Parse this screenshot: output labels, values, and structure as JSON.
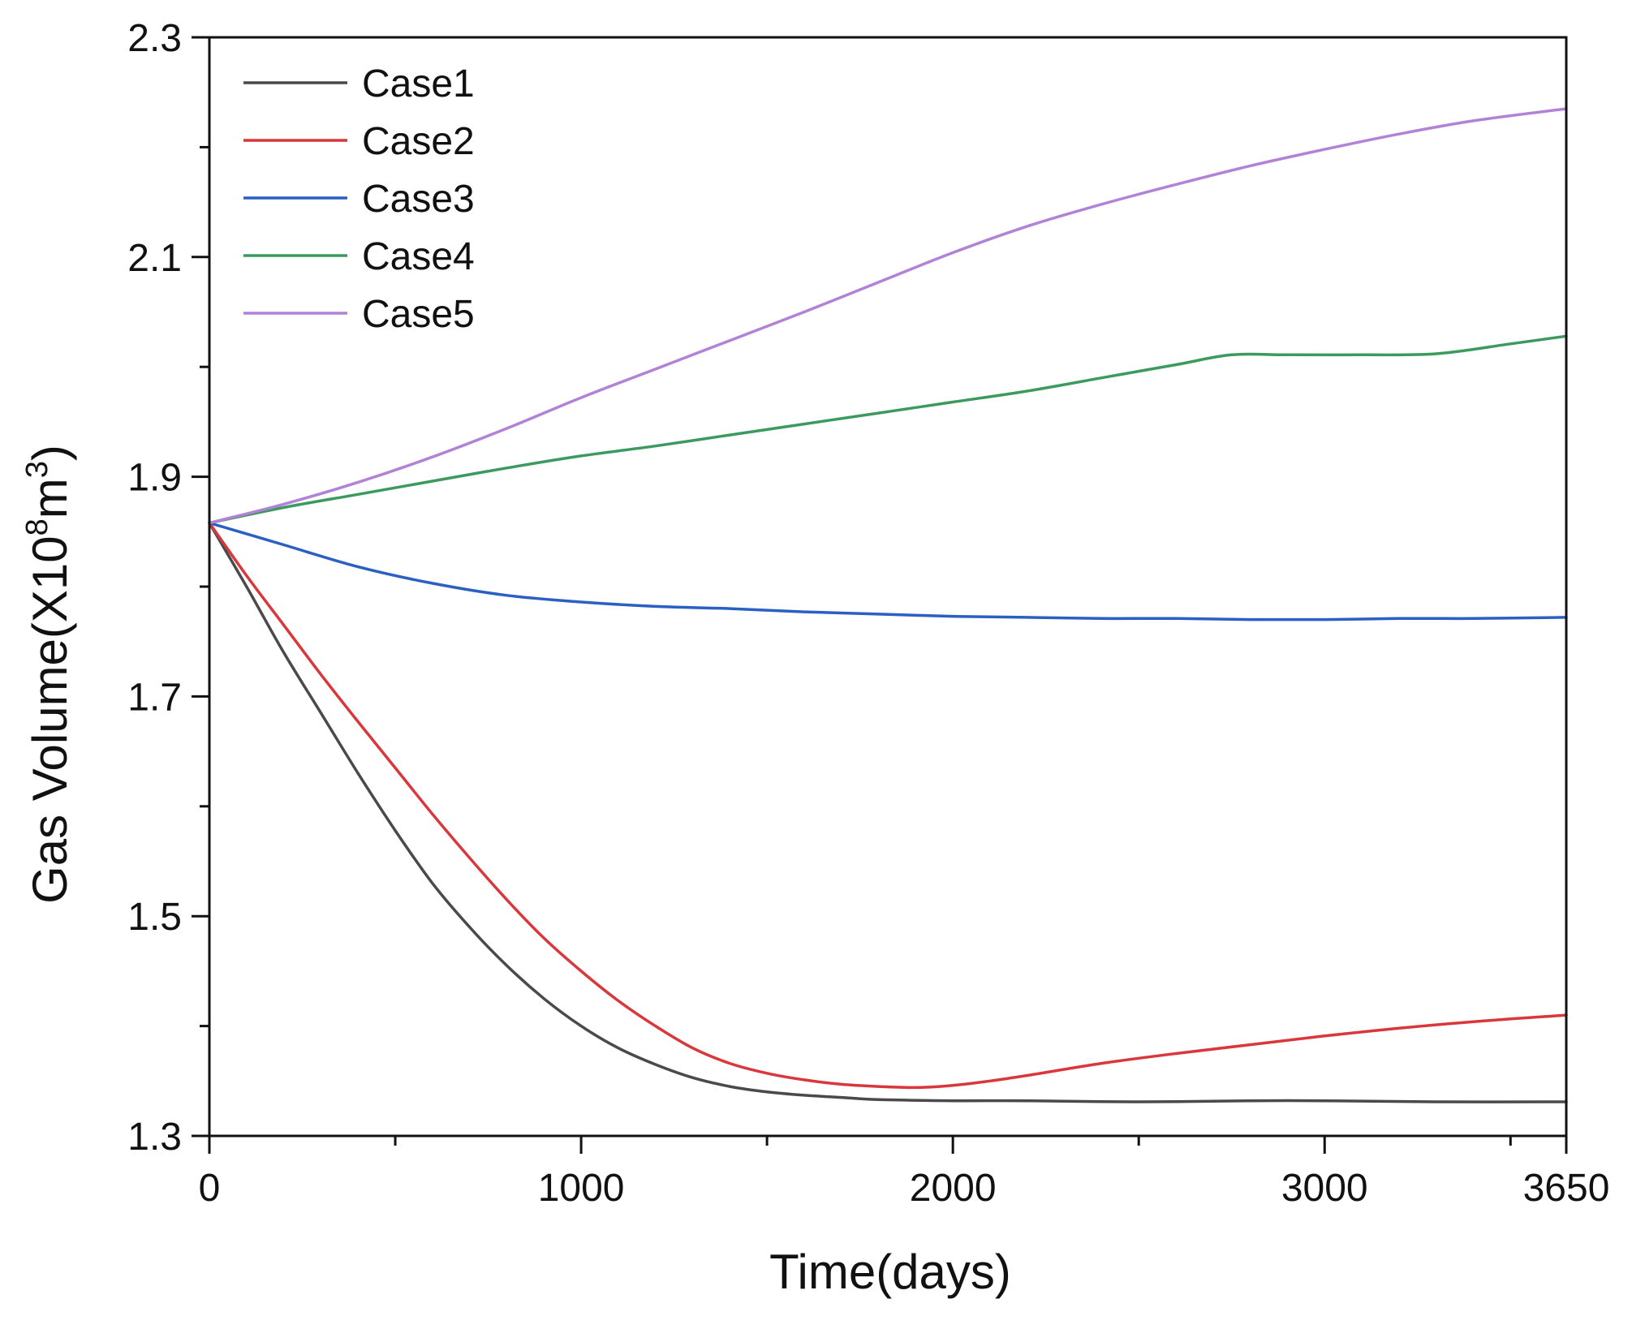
{
  "chart_data": {
    "type": "line",
    "title": "",
    "xlabel": "Time(days)",
    "ylabel": {
      "prefix": "Gas Volume(X10",
      "sup1": "8",
      "mid": "m",
      "sup2": "3",
      "suffix": ")"
    },
    "xlim": [
      0,
      3650
    ],
    "ylim": [
      1.3,
      2.3
    ],
    "x_ticks": [
      0,
      1000,
      2000,
      3000,
      3650
    ],
    "x_tick_labels": [
      "0",
      "1000",
      "2000",
      "3000",
      "3650"
    ],
    "x_minor_ticks": [
      500,
      1500,
      2500,
      3500
    ],
    "y_ticks": [
      1.3,
      1.5,
      1.7,
      1.9,
      2.1,
      2.3
    ],
    "y_tick_labels": [
      "1.3",
      "1.5",
      "1.7",
      "1.9",
      "2.1",
      "2.3"
    ],
    "y_minor_ticks": [
      1.4,
      1.6,
      1.8,
      2.0,
      2.2
    ],
    "legend_position": "top-left",
    "series": [
      {
        "name": "Case1",
        "color": "#4a4a4a",
        "points": [
          [
            0,
            1.858
          ],
          [
            100,
            1.8
          ],
          [
            200,
            1.74
          ],
          [
            300,
            1.685
          ],
          [
            400,
            1.63
          ],
          [
            500,
            1.578
          ],
          [
            600,
            1.53
          ],
          [
            700,
            1.49
          ],
          [
            800,
            1.455
          ],
          [
            900,
            1.425
          ],
          [
            1000,
            1.4
          ],
          [
            1100,
            1.38
          ],
          [
            1200,
            1.365
          ],
          [
            1300,
            1.353
          ],
          [
            1400,
            1.345
          ],
          [
            1500,
            1.34
          ],
          [
            1600,
            1.337
          ],
          [
            1700,
            1.335
          ],
          [
            1800,
            1.333
          ],
          [
            2000,
            1.332
          ],
          [
            2200,
            1.332
          ],
          [
            2500,
            1.331
          ],
          [
            2800,
            1.332
          ],
          [
            3000,
            1.332
          ],
          [
            3300,
            1.331
          ],
          [
            3650,
            1.331
          ]
        ]
      },
      {
        "name": "Case2",
        "color": "#d9373b",
        "points": [
          [
            0,
            1.858
          ],
          [
            100,
            1.81
          ],
          [
            200,
            1.765
          ],
          [
            300,
            1.72
          ],
          [
            400,
            1.677
          ],
          [
            500,
            1.635
          ],
          [
            600,
            1.593
          ],
          [
            700,
            1.553
          ],
          [
            800,
            1.515
          ],
          [
            900,
            1.48
          ],
          [
            1000,
            1.45
          ],
          [
            1100,
            1.423
          ],
          [
            1200,
            1.4
          ],
          [
            1300,
            1.38
          ],
          [
            1400,
            1.366
          ],
          [
            1500,
            1.357
          ],
          [
            1600,
            1.351
          ],
          [
            1700,
            1.347
          ],
          [
            1800,
            1.345
          ],
          [
            1900,
            1.344
          ],
          [
            2000,
            1.346
          ],
          [
            2100,
            1.35
          ],
          [
            2200,
            1.355
          ],
          [
            2400,
            1.366
          ],
          [
            2600,
            1.375
          ],
          [
            2800,
            1.383
          ],
          [
            3000,
            1.391
          ],
          [
            3200,
            1.398
          ],
          [
            3400,
            1.404
          ],
          [
            3650,
            1.41
          ]
        ]
      },
      {
        "name": "Case3",
        "color": "#2a5fc4",
        "points": [
          [
            0,
            1.858
          ],
          [
            200,
            1.838
          ],
          [
            400,
            1.818
          ],
          [
            600,
            1.803
          ],
          [
            800,
            1.792
          ],
          [
            1000,
            1.786
          ],
          [
            1200,
            1.782
          ],
          [
            1400,
            1.78
          ],
          [
            1600,
            1.777
          ],
          [
            1800,
            1.775
          ],
          [
            2000,
            1.773
          ],
          [
            2200,
            1.772
          ],
          [
            2400,
            1.771
          ],
          [
            2600,
            1.771
          ],
          [
            2800,
            1.77
          ],
          [
            3000,
            1.77
          ],
          [
            3200,
            1.771
          ],
          [
            3400,
            1.771
          ],
          [
            3650,
            1.772
          ]
        ]
      },
      {
        "name": "Case4",
        "color": "#3d9a5e",
        "points": [
          [
            0,
            1.858
          ],
          [
            200,
            1.872
          ],
          [
            400,
            1.884
          ],
          [
            600,
            1.896
          ],
          [
            800,
            1.908
          ],
          [
            1000,
            1.919
          ],
          [
            1200,
            1.928
          ],
          [
            1400,
            1.938
          ],
          [
            1600,
            1.948
          ],
          [
            1800,
            1.958
          ],
          [
            2000,
            1.968
          ],
          [
            2200,
            1.978
          ],
          [
            2400,
            1.99
          ],
          [
            2600,
            2.002
          ],
          [
            2750,
            2.011
          ],
          [
            2900,
            2.011
          ],
          [
            3100,
            2.011
          ],
          [
            3300,
            2.012
          ],
          [
            3500,
            2.021
          ],
          [
            3650,
            2.028
          ]
        ]
      },
      {
        "name": "Case5",
        "color": "#b183d8",
        "points": [
          [
            0,
            1.858
          ],
          [
            200,
            1.875
          ],
          [
            400,
            1.895
          ],
          [
            600,
            1.918
          ],
          [
            800,
            1.944
          ],
          [
            1000,
            1.972
          ],
          [
            1200,
            1.998
          ],
          [
            1400,
            2.024
          ],
          [
            1600,
            2.05
          ],
          [
            1800,
            2.077
          ],
          [
            2000,
            2.104
          ],
          [
            2200,
            2.128
          ],
          [
            2400,
            2.148
          ],
          [
            2600,
            2.166
          ],
          [
            2800,
            2.183
          ],
          [
            3000,
            2.198
          ],
          [
            3200,
            2.212
          ],
          [
            3400,
            2.224
          ],
          [
            3650,
            2.235
          ]
        ]
      }
    ]
  }
}
